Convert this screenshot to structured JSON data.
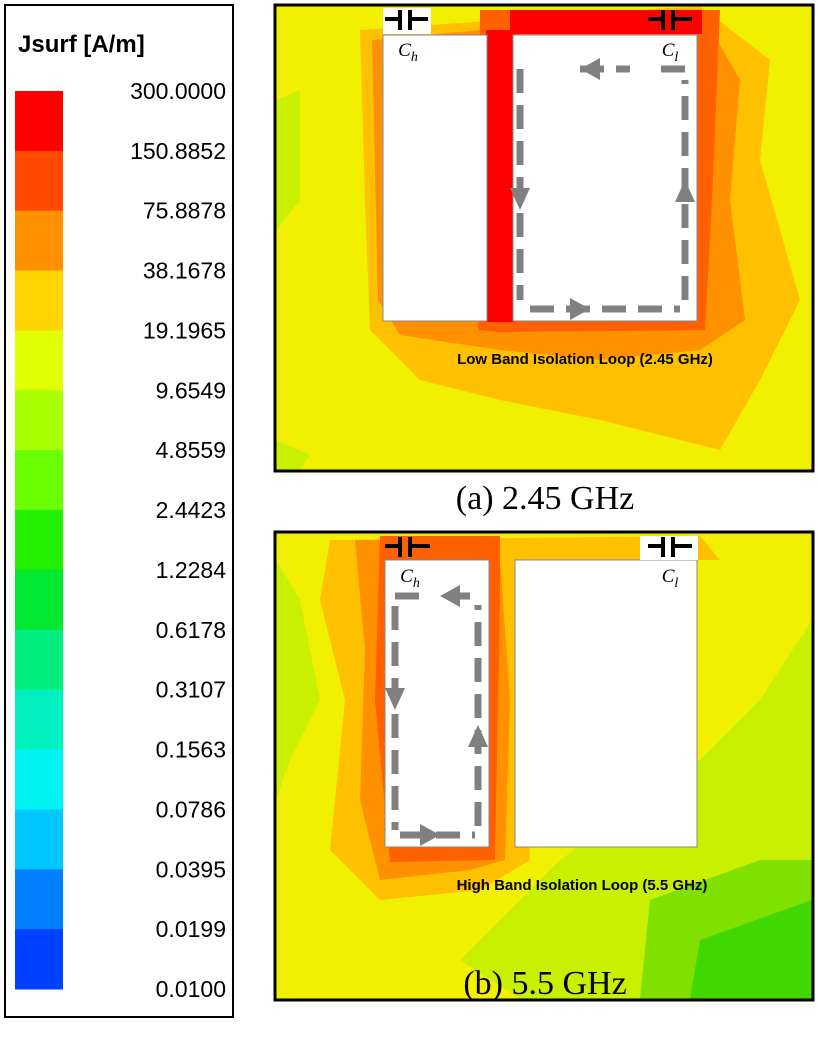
{
  "legend": {
    "title": "Jsurf [A/m]",
    "labels": [
      "300.0000",
      "150.8852",
      "75.8878",
      "38.1678",
      "19.1965",
      "9.6549",
      "4.8559",
      "2.4423",
      "1.2284",
      "0.6178",
      "0.3107",
      "0.1563",
      "0.0786",
      "0.0395",
      "0.0199",
      "0.0100"
    ]
  },
  "panels": [
    {
      "caption": "(a) 2.45 GHz",
      "annotation": "Low Band Isolation Loop (2.45 GHz)",
      "capacitors": [
        {
          "base": "C",
          "sub": "h"
        },
        {
          "base": "C",
          "sub": "l"
        }
      ]
    },
    {
      "caption": "(b) 5.5 GHz",
      "annotation": "High Band Isolation Loop (5.5 GHz)",
      "capacitors": [
        {
          "base": "C",
          "sub": "h"
        },
        {
          "base": "C",
          "sub": "l"
        }
      ]
    }
  ]
}
